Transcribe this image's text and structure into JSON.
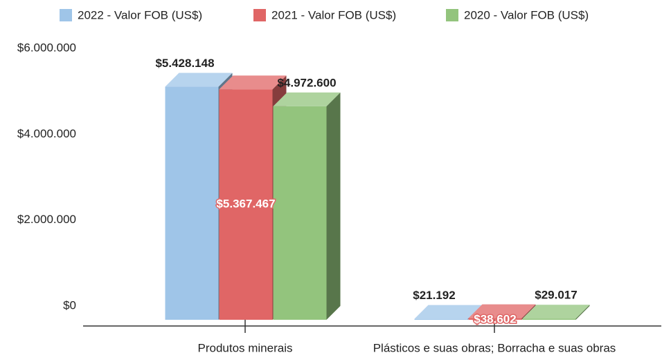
{
  "chart_data": {
    "type": "bar3d",
    "categories": [
      "Produtos minerais",
      "Plásticos e suas obras; Borracha e suas obras"
    ],
    "series": [
      {
        "name": "2022 - Valor FOB (US$)",
        "color": "#9fc5e8",
        "values": [
          5428148,
          21192
        ],
        "value_labels": [
          "$5.428.148",
          "$21.192"
        ]
      },
      {
        "name": "2021 - Valor FOB (US$)",
        "color": "#e06666",
        "values": [
          5367467,
          38602
        ],
        "value_labels": [
          "$5.367.467",
          "$38.602"
        ]
      },
      {
        "name": "2020 - Valor FOB (US$)",
        "color": "#93c47d",
        "values": [
          4972600,
          29017
        ],
        "value_labels": [
          "$4.972.600",
          "$29.017"
        ]
      }
    ],
    "ylim": [
      0,
      6000000
    ],
    "yticks": [
      {
        "value": 0,
        "label": "$0"
      },
      {
        "value": 2000000,
        "label": "$2.000.000"
      },
      {
        "value": 4000000,
        "label": "$4.000.000"
      },
      {
        "value": 6000000,
        "label": "$6.000.000"
      }
    ],
    "legend": "top"
  }
}
